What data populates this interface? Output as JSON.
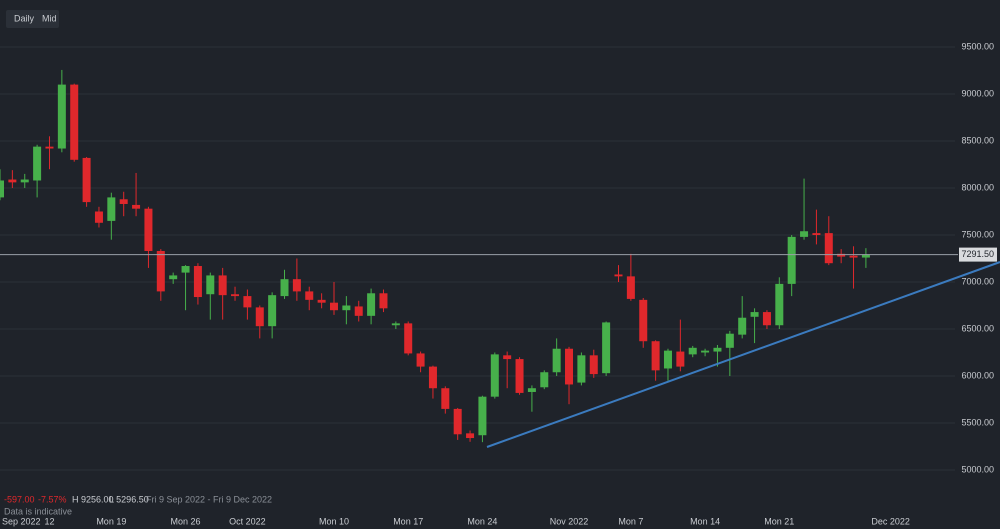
{
  "toolbar": {
    "buttons": [
      "Daily",
      "Mid"
    ]
  },
  "summary": {
    "change": "-597.00",
    "change_pct": "-7.57%",
    "high": "H 9256.00",
    "low": "L 5296.50",
    "range": "Fri 9 Sep 2022 - Fri 9 Dec 2022",
    "note": "Data is indicative"
  },
  "chart_data": {
    "type": "candlestick",
    "up_color": "#47b04b",
    "down_color": "#e0282c",
    "grid": true,
    "ylim": [
      4500,
      10000
    ],
    "yticks": [
      {
        "value": 5000,
        "label": "5000.00"
      },
      {
        "value": 5500,
        "label": "5500.00"
      },
      {
        "value": 6000,
        "label": "6000.00"
      },
      {
        "value": 6500,
        "label": "6500.00"
      },
      {
        "value": 7000,
        "label": "7000.00"
      },
      {
        "value": 7500,
        "label": "7500.00"
      },
      {
        "value": 8000,
        "label": "8000.00"
      },
      {
        "value": 8500,
        "label": "8500.00"
      },
      {
        "value": 9000,
        "label": "9000.00"
      },
      {
        "value": 9500,
        "label": "9500.00"
      }
    ],
    "last_price": {
      "value": 7291.5,
      "label": "7291.50"
    },
    "categories": [
      null,
      "Sep 2022",
      null,
      null,
      "12",
      null,
      null,
      null,
      null,
      "Mon 19",
      null,
      null,
      null,
      null,
      null,
      "Mon 26",
      null,
      null,
      null,
      null,
      "Oct 2022",
      null,
      null,
      null,
      null,
      null,
      null,
      "Mon 10",
      null,
      null,
      null,
      null,
      null,
      "Mon 17",
      null,
      null,
      null,
      null,
      null,
      "Mon 24",
      null,
      null,
      null,
      null,
      null,
      null,
      "Nov 2022",
      null,
      null,
      null,
      null,
      "Mon 7",
      null,
      null,
      null,
      null,
      null,
      "Mon 14",
      null,
      null,
      null,
      null,
      null,
      "Mon 21",
      null,
      null,
      null,
      null,
      null,
      null,
      null,
      null,
      "Dec 2022"
    ],
    "open": [
      7900,
      8090,
      8060,
      8080,
      8440,
      8420,
      9100,
      8320,
      7750,
      7650,
      7880,
      7820,
      7780,
      7330,
      7030,
      7100,
      7170,
      6870,
      7070,
      6870,
      6850,
      6730,
      6530,
      6850,
      7030,
      6900,
      6810,
      6780,
      6700,
      6740,
      6640,
      6880,
      6540,
      6560,
      6240,
      6100,
      5870,
      5650,
      5390,
      5370,
      5780,
      6220,
      6180,
      5830,
      5880,
      6040,
      6290,
      5930,
      6220,
      6030,
      7080,
      7060,
      6810,
      6370,
      6080,
      6260,
      6230,
      6250,
      6260,
      6300,
      6440,
      6630,
      6680,
      6540,
      6980,
      7480,
      7520,
      7520,
      7300,
      7280,
      7260,
      null,
      null
    ],
    "high": [
      8200,
      8190,
      8150,
      8460,
      8550,
      9256,
      9110,
      8330,
      7800,
      7950,
      7960,
      8160,
      7800,
      7350,
      7100,
      7180,
      7200,
      7100,
      7150,
      6950,
      6920,
      6750,
      6890,
      7130,
      7250,
      6950,
      6880,
      7000,
      6850,
      6800,
      6930,
      6920,
      6580,
      6580,
      6260,
      6110,
      5890,
      5660,
      5420,
      5790,
      6250,
      6260,
      6200,
      5900,
      6060,
      6400,
      6310,
      6250,
      6280,
      6580,
      7180,
      7300,
      6830,
      6380,
      6290,
      6600,
      6320,
      6290,
      6330,
      6480,
      6850,
      6720,
      6700,
      7050,
      7500,
      8100,
      7770,
      7700,
      7350,
      7380,
      7360,
      null,
      null
    ],
    "low": [
      7870,
      8000,
      8000,
      7900,
      8200,
      8380,
      8280,
      7800,
      7580,
      7450,
      7700,
      7700,
      7150,
      6800,
      6980,
      6700,
      6760,
      6600,
      6600,
      6800,
      6600,
      6400,
      6400,
      6820,
      6800,
      6700,
      6720,
      6650,
      6550,
      6580,
      6550,
      6680,
      6500,
      6220,
      6040,
      5760,
      5600,
      5320,
      5300,
      5296.5,
      5760,
      5870,
      5800,
      5620,
      5860,
      6000,
      5700,
      5900,
      5980,
      6000,
      7000,
      6800,
      6300,
      5950,
      5950,
      6050,
      6200,
      6210,
      6100,
      6000,
      6400,
      6350,
      6500,
      6500,
      6850,
      7450,
      7400,
      7180,
      7200,
      6930,
      7150,
      null,
      null
    ],
    "close": [
      8080,
      8060,
      8090,
      8440,
      8420,
      9100,
      8300,
      7850,
      7630,
      7900,
      7830,
      7780,
      7330,
      6900,
      7070,
      7170,
      6840,
      7070,
      6860,
      6850,
      6730,
      6530,
      6860,
      7030,
      6900,
      6810,
      6780,
      6700,
      6750,
      6640,
      6880,
      6720,
      6560,
      6240,
      6100,
      5870,
      5650,
      5380,
      5340,
      5780,
      6230,
      6180,
      5820,
      5870,
      6040,
      6290,
      5910,
      6220,
      6020,
      6570,
      7060,
      6820,
      6370,
      6060,
      6270,
      6100,
      6300,
      6270,
      6300,
      6450,
      6620,
      6680,
      6540,
      6980,
      7480,
      7540,
      7500,
      7200,
      7270,
      7260,
      7291.5,
      null,
      null
    ]
  }
}
